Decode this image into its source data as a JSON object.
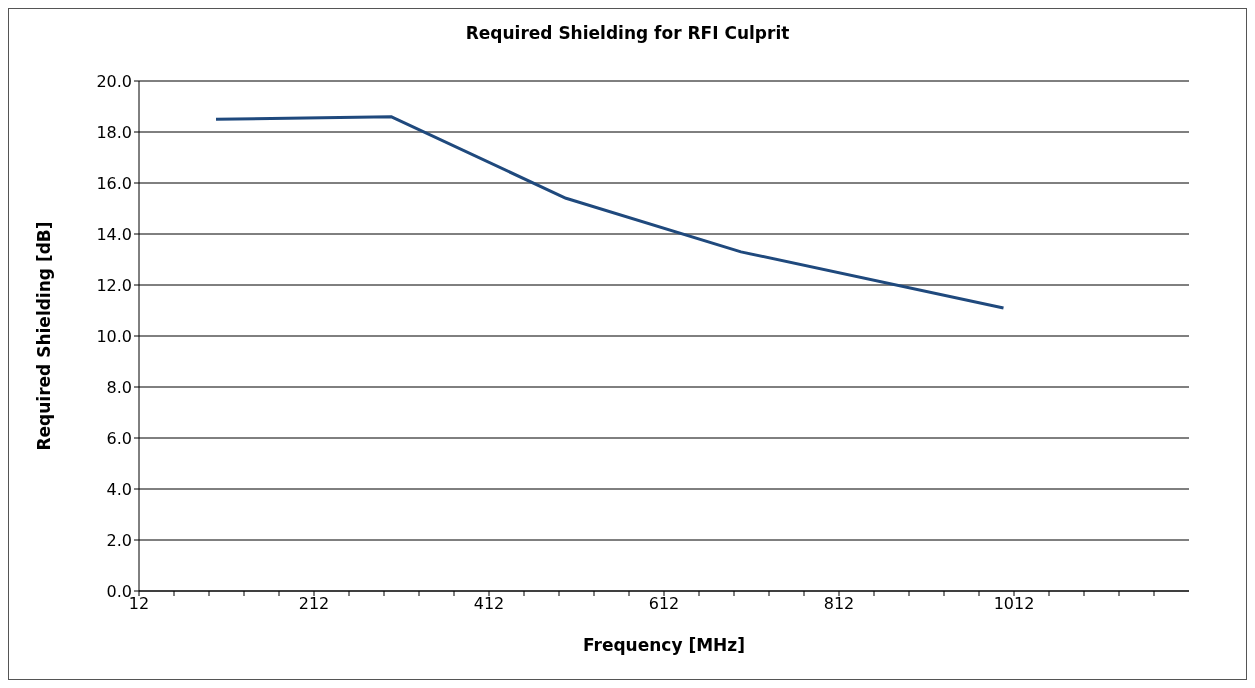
{
  "chart_data": {
    "type": "line",
    "title": "Required Shielding for RFI Culprit",
    "xlabel": "Frequency [MHz]",
    "ylabel": "Required Shielding [dB]",
    "x": [
      100,
      300,
      500,
      700,
      1000
    ],
    "series": [
      {
        "color": "#1f497d",
        "values": [
          18.5,
          18.6,
          15.4,
          13.3,
          11.1
        ]
      }
    ],
    "xlim": [
      12,
      1212
    ],
    "xticks": [
      12,
      {
        "value": 52,
        "label": null
      },
      {
        "value": 92,
        "label": null
      },
      {
        "value": 132,
        "label": null
      },
      {
        "value": 172,
        "label": null
      },
      212,
      {
        "value": 252,
        "label": null
      },
      {
        "value": 292,
        "label": null
      },
      {
        "value": 332,
        "label": null
      },
      {
        "value": 372,
        "label": null
      },
      412,
      {
        "value": 452,
        "label": null
      },
      {
        "value": 492,
        "label": null
      },
      {
        "value": 532,
        "label": null
      },
      {
        "value": 572,
        "label": null
      },
      612,
      {
        "value": 652,
        "label": null
      },
      {
        "value": 692,
        "label": null
      },
      {
        "value": 732,
        "label": null
      },
      {
        "value": 772,
        "label": null
      },
      812,
      {
        "value": 852,
        "label": null
      },
      {
        "value": 892,
        "label": null
      },
      {
        "value": 932,
        "label": null
      },
      {
        "value": 972,
        "label": null
      },
      1012,
      {
        "value": 1052,
        "label": null
      },
      {
        "value": 1092,
        "label": null
      },
      {
        "value": 1132,
        "label": null
      },
      {
        "value": 1172,
        "label": null
      }
    ],
    "ylim": [
      0,
      20
    ],
    "yticks": [
      {
        "value": 0,
        "label": "0.0"
      },
      {
        "value": 2,
        "label": "2.0"
      },
      {
        "value": 4,
        "label": "4.0"
      },
      {
        "value": 6,
        "label": "6.0"
      },
      {
        "value": 8,
        "label": "8.0"
      },
      {
        "value": 10,
        "label": "10.0"
      },
      {
        "value": 12,
        "label": "12.0"
      },
      {
        "value": 14,
        "label": "14.0"
      },
      {
        "value": 16,
        "label": "16.0"
      },
      {
        "value": 18,
        "label": "18.0"
      },
      {
        "value": 20,
        "label": "20.0"
      }
    ],
    "grid": "y",
    "marker": "none",
    "line_style": "solid"
  }
}
